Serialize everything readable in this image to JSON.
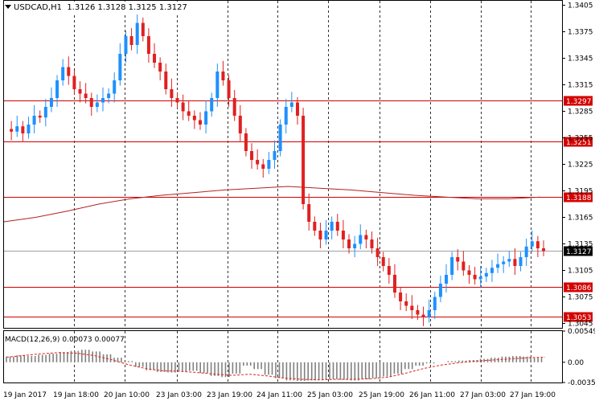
{
  "header": {
    "symbol": "USDCAD,H1",
    "ohlc": "1.3126 1.3128 1.3125 1.3127"
  },
  "price_axis": {
    "ticks": [
      "1.3405",
      "1.3375",
      "1.3345",
      "1.3315",
      "1.3285",
      "1.3255",
      "1.3225",
      "1.3195",
      "1.3165",
      "1.3135",
      "1.3105",
      "1.3075",
      "1.3045"
    ],
    "current_price": "1.3127"
  },
  "horizontal_levels": [
    {
      "value": 1.3297,
      "label": "1.3297"
    },
    {
      "value": 1.3251,
      "label": "1.3251"
    },
    {
      "value": 1.3188,
      "label": "1.3188"
    },
    {
      "value": 1.3086,
      "label": "1.3086"
    },
    {
      "value": 1.3053,
      "label": "1.3053"
    }
  ],
  "time_axis": {
    "labels": [
      "19 Jan 2017",
      "19 Jan 18:00",
      "20 Jan 10:00",
      "23 Jan 03:00",
      "23 Jan 19:00",
      "24 Jan 11:00",
      "25 Jan 03:00",
      "25 Jan 19:00",
      "26 Jan 11:00",
      "27 Jan 03:00",
      "27 Jan 19:00"
    ]
  },
  "macd": {
    "name": "MACD(12,26,9)",
    "main": "0.00073",
    "signal": "0.00077",
    "ticks": [
      "0.00549",
      "0.00",
      "-0.00356"
    ]
  },
  "colors": {
    "bull": "#1e90ff",
    "bear": "#e02020",
    "level": "#d40000",
    "ma": "#b22222",
    "grid": "#000000",
    "histogram": "#808080"
  },
  "chart_data": {
    "type": "candlestick",
    "title": "USDCAD,H1",
    "ylim": [
      1.304,
      1.341
    ],
    "price_series": [
      1.3265,
      1.3262,
      1.3268,
      1.326,
      1.327,
      1.328,
      1.3278,
      1.329,
      1.33,
      1.332,
      1.3335,
      1.3325,
      1.331,
      1.3305,
      1.33,
      1.329,
      1.3295,
      1.33,
      1.3305,
      1.332,
      1.335,
      1.337,
      1.336,
      1.3385,
      1.337,
      1.335,
      1.334,
      1.333,
      1.331,
      1.33,
      1.3295,
      1.3285,
      1.328,
      1.3275,
      1.327,
      1.3285,
      1.33,
      1.333,
      1.332,
      1.33,
      1.328,
      1.326,
      1.324,
      1.323,
      1.3225,
      1.322,
      1.323,
      1.324,
      1.327,
      1.329,
      1.3295,
      1.328,
      1.318,
      1.316,
      1.315,
      1.314,
      1.315,
      1.316,
      1.315,
      1.314,
      1.313,
      1.3135,
      1.3145,
      1.314,
      1.313,
      1.312,
      1.311,
      1.31,
      1.308,
      1.307,
      1.3065,
      1.306,
      1.3055,
      1.3052,
      1.306,
      1.3075,
      1.309,
      1.31,
      1.312,
      1.3115,
      1.3105,
      1.31,
      1.3095,
      1.3098,
      1.3102,
      1.3108,
      1.3112,
      1.3115,
      1.3118,
      1.311,
      1.312,
      1.3132,
      1.3138,
      1.313,
      1.3127
    ],
    "moving_average": [
      1.316,
      1.3165,
      1.3172,
      1.318,
      1.3186,
      1.319,
      1.3193,
      1.3196,
      1.3198,
      1.32,
      1.3198,
      1.3196,
      1.3193,
      1.319,
      1.3188,
      1.3186,
      1.3186,
      1.3188
    ],
    "macd_histogram": [
      0.001,
      0.0012,
      0.0011,
      0.0013,
      0.0015,
      0.0018,
      0.002,
      0.0022,
      0.0019,
      0.0014,
      0.0008,
      0.0002,
      -0.0008,
      -0.0014,
      -0.0017,
      -0.0018,
      -0.0016,
      -0.0015,
      -0.0019,
      -0.0024,
      -0.0026,
      -0.002,
      -0.0006,
      -0.0012,
      -0.0022,
      -0.0028,
      -0.0032,
      -0.0033,
      -0.0032,
      -0.0031,
      -0.003,
      -0.0031,
      -0.0032,
      -0.003,
      -0.0028,
      -0.0025,
      -0.002,
      -0.0012,
      -0.0006,
      -0.0002,
      0.0,
      0.0002,
      0.0003,
      0.0004,
      0.0006,
      0.0008,
      0.001,
      0.0011,
      0.001,
      0.0008
    ],
    "macd_signal_line": [
      0.0009,
      0.0012,
      0.0015,
      0.0017,
      0.0016,
      0.0012,
      0.0005,
      -0.0004,
      -0.0011,
      -0.0015,
      -0.0016,
      -0.0018,
      -0.0021,
      -0.0023,
      -0.0021,
      -0.0024,
      -0.0028,
      -0.003,
      -0.0031,
      -0.003,
      -0.003,
      -0.0029,
      -0.0026,
      -0.0019,
      -0.0011,
      -0.0005,
      -0.0001,
      0.0002,
      0.0004,
      0.0006,
      0.0008,
      0.0009
    ]
  }
}
